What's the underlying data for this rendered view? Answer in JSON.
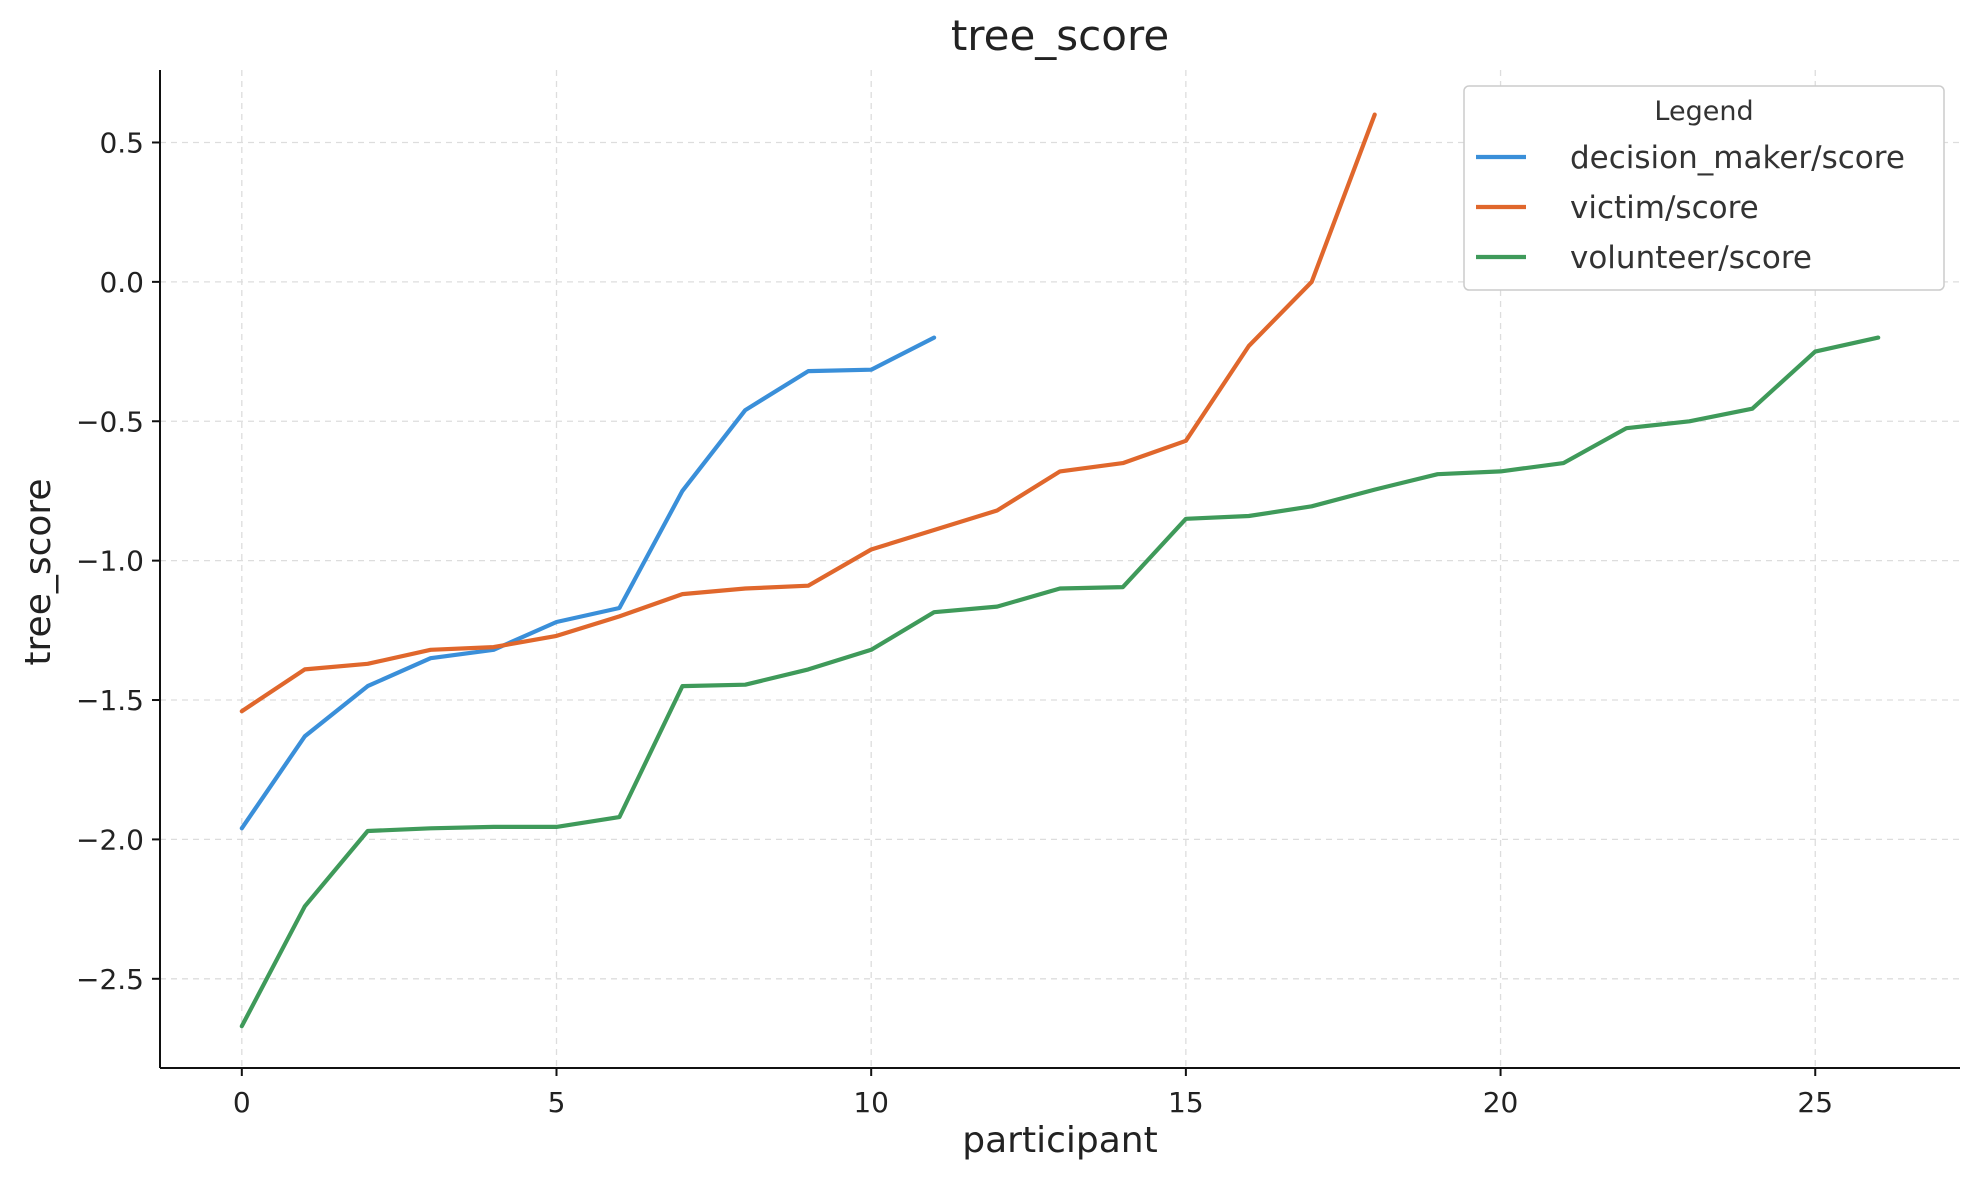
{
  "chart_data": {
    "type": "line",
    "title": "tree_score",
    "xlabel": "participant",
    "ylabel": "tree_score",
    "xlim": [
      -1.3,
      27.3
    ],
    "ylim": [
      -2.82,
      0.76
    ],
    "xticks": [
      0,
      5,
      10,
      15,
      20,
      25
    ],
    "xtick_labels": [
      "0",
      "5",
      "10",
      "15",
      "20",
      "25"
    ],
    "yticks": [
      0.5,
      0.0,
      -0.5,
      -1.0,
      -1.5,
      -2.0,
      -2.5
    ],
    "ytick_labels": [
      "0.5",
      "0.0",
      "−0.5",
      "−1.0",
      "−1.5",
      "−2.0",
      "−2.5"
    ],
    "grid": true,
    "legend": {
      "title": "Legend",
      "position": "top-right"
    },
    "series": [
      {
        "name": "decision_maker/score",
        "color": "#3a8fd9",
        "x": [
          0,
          1,
          2,
          3,
          4,
          5,
          6,
          7,
          8,
          9,
          10,
          11
        ],
        "values": [
          -1.96,
          -1.63,
          -1.45,
          -1.35,
          -1.32,
          -1.22,
          -1.17,
          -0.75,
          -0.46,
          -0.32,
          -0.315,
          -0.2
        ]
      },
      {
        "name": "victim/score",
        "color": "#e0672c",
        "x": [
          0,
          1,
          2,
          3,
          4,
          5,
          6,
          7,
          8,
          9,
          10,
          11,
          12,
          13,
          14,
          15,
          16,
          17,
          18
        ],
        "values": [
          -1.54,
          -1.39,
          -1.37,
          -1.32,
          -1.31,
          -1.27,
          -1.2,
          -1.12,
          -1.1,
          -1.09,
          -0.96,
          -0.89,
          -0.82,
          -0.68,
          -0.65,
          -0.57,
          -0.23,
          0.0,
          0.6
        ]
      },
      {
        "name": "volunteer/score",
        "color": "#3f9a5a",
        "x": [
          0,
          1,
          2,
          3,
          4,
          5,
          6,
          7,
          8,
          9,
          10,
          11,
          12,
          13,
          14,
          15,
          16,
          17,
          18,
          19,
          20,
          21,
          22,
          23,
          24,
          25,
          26
        ],
        "values": [
          -2.67,
          -2.24,
          -1.97,
          -1.96,
          -1.955,
          -1.955,
          -1.92,
          -1.45,
          -1.445,
          -1.39,
          -1.32,
          -1.185,
          -1.165,
          -1.1,
          -1.095,
          -0.85,
          -0.84,
          -0.805,
          -0.745,
          -0.69,
          -0.68,
          -0.65,
          -0.525,
          -0.5,
          -0.455,
          -0.25,
          -0.2
        ]
      }
    ]
  }
}
